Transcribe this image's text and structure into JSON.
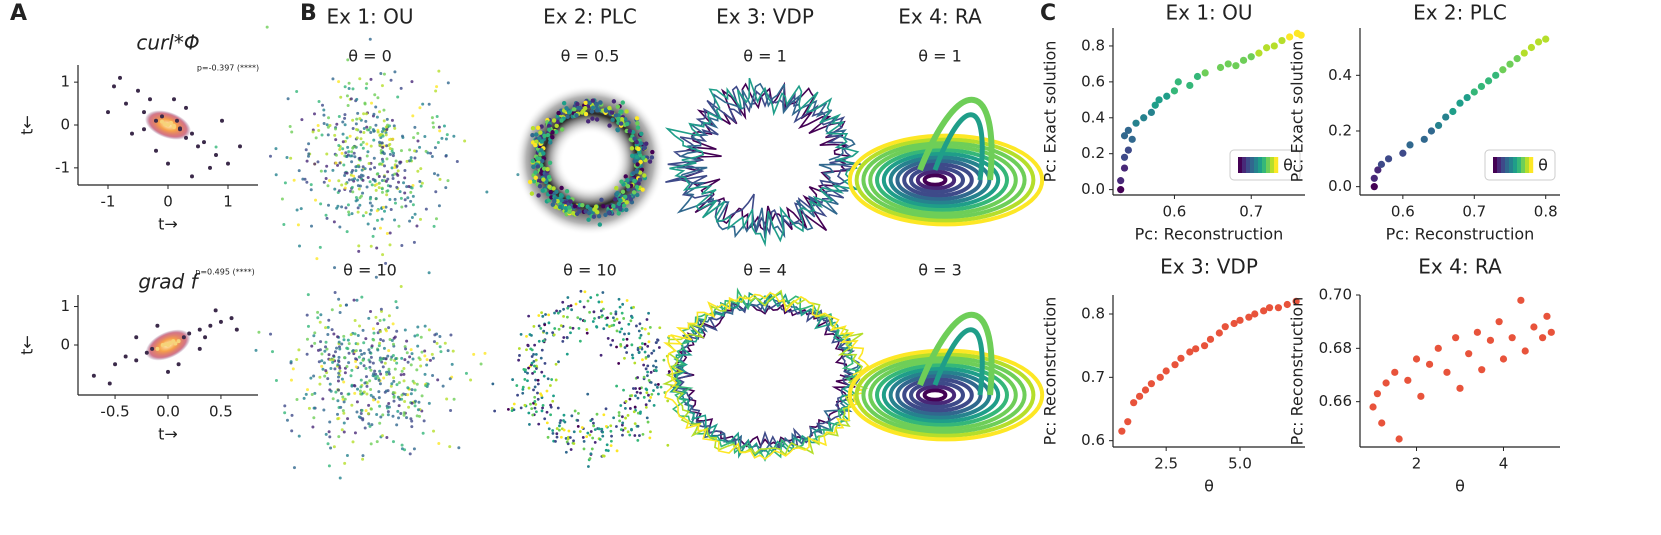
{
  "panel_labels": [
    "A",
    "B",
    "C"
  ],
  "panel_b": {
    "columns": [
      {
        "title": "Ex 1: OU",
        "top": "θ = 0",
        "bottom": "θ = 10"
      },
      {
        "title": "Ex 2: PLC",
        "top": "θ = 0.5",
        "bottom": "θ = 10"
      },
      {
        "title": "Ex 3: VDP",
        "top": "θ = 1",
        "bottom": "θ = 4"
      },
      {
        "title": "Ex 4: RA",
        "top": "θ = 1",
        "bottom": "θ = 3"
      }
    ]
  },
  "chart_data": [
    {
      "type": "scatter",
      "title": "curl*Φ",
      "annotation": "p=-0.397 (****)",
      "xlabel": "t→",
      "ylabel": "t←",
      "xlim": [
        -1.5,
        1.5
      ],
      "xticks": [
        -1,
        0,
        1
      ],
      "ylim": [
        -1.4,
        1.4
      ],
      "yticks": [
        -1,
        0,
        1
      ],
      "colormap": "inferno",
      "x": [
        -0.9,
        -0.7,
        -0.5,
        -0.4,
        -0.3,
        -0.2,
        -0.1,
        0,
        0.05,
        0.1,
        0.15,
        0.2,
        0.3,
        0.4,
        0.5,
        0.6,
        0.8,
        1.0,
        -0.6,
        -0.2,
        0.1,
        0.3,
        -0.4,
        0.7,
        -1.0,
        1.2,
        0.0,
        -0.05,
        0.1,
        -0.1,
        0.2,
        0.9,
        -0.8,
        0.4
      ],
      "values": [
        0.9,
        0.5,
        0.8,
        0.3,
        0.6,
        0.1,
        0.2,
        0.0,
        0.05,
        -0.05,
        0.1,
        -0.1,
        -0.3,
        -0.2,
        -0.5,
        -0.4,
        -0.7,
        -0.9,
        -0.2,
        -0.6,
        0.6,
        0.4,
        -0.1,
        -1.0,
        0.3,
        -0.5,
        -0.9,
        0.02,
        -0.02,
        0.08,
        -0.08,
        0.1,
        1.1,
        -1.2
      ]
    },
    {
      "type": "scatter",
      "title": "grad f",
      "annotation": "p=0.495 (****)",
      "xlabel": "t→",
      "ylabel": "t←",
      "xlim": [
        -0.85,
        0.85
      ],
      "xticks": [
        -0.5,
        {
          "value": 0,
          "label": "0.0"
        },
        0.5
      ],
      "ylim": [
        -1.3,
        1.3
      ],
      "yticks": [
        0,
        1
      ],
      "colormap": "inferno",
      "x": [
        -0.7,
        -0.5,
        -0.4,
        -0.3,
        -0.2,
        -0.15,
        -0.1,
        -0.05,
        0,
        0.02,
        0.05,
        0.1,
        0.15,
        0.2,
        0.3,
        0.35,
        0.4,
        0.5,
        0.6,
        -0.3,
        0.1,
        0.3,
        -0.1,
        0.45,
        -0.55,
        0.65,
        0.0,
        -0.02,
        0.07
      ],
      "values": [
        -0.8,
        -0.5,
        -0.3,
        -0.4,
        -0.2,
        -0.1,
        -0.1,
        0.0,
        0.0,
        0.05,
        0.1,
        0.1,
        0.2,
        0.3,
        0.4,
        0.2,
        0.5,
        0.6,
        0.7,
        0.2,
        -0.5,
        -0.1,
        0.5,
        0.9,
        -1.0,
        0.4,
        -0.7,
        0.02,
        0.04
      ]
    },
    {
      "type": "scatter",
      "title": "Ex 1: OU",
      "xlabel": "Pc: Reconstruction",
      "ylabel": "Pc: Exact solution",
      "colormap": "viridis",
      "colorbar_label": "θ",
      "legend": "lower right",
      "xlim": [
        0.52,
        0.77
      ],
      "xticks": [
        0.6,
        0.7
      ],
      "ylim": [
        -0.03,
        0.9
      ],
      "yticks": [
        {
          "value": 0,
          "label": "0.0"
        },
        0.2,
        0.4,
        0.6,
        0.8
      ],
      "x": [
        0.53,
        0.53,
        0.535,
        0.535,
        0.54,
        0.535,
        0.54,
        0.545,
        0.55,
        0.56,
        0.57,
        0.575,
        0.58,
        0.59,
        0.6,
        0.605,
        0.62,
        0.63,
        0.64,
        0.66,
        0.67,
        0.68,
        0.69,
        0.7,
        0.71,
        0.72,
        0.73,
        0.74,
        0.75,
        0.76,
        0.765
      ],
      "values": [
        0.0,
        0.05,
        0.12,
        0.18,
        0.22,
        0.3,
        0.33,
        0.28,
        0.37,
        0.4,
        0.43,
        0.47,
        0.5,
        0.52,
        0.55,
        0.6,
        0.58,
        0.63,
        0.65,
        0.68,
        0.7,
        0.69,
        0.72,
        0.74,
        0.76,
        0.79,
        0.8,
        0.83,
        0.85,
        0.87,
        0.86
      ]
    },
    {
      "type": "scatter",
      "title": "Ex 2: PLC",
      "xlabel": "Pc: Reconstruction",
      "ylabel": "Pc: Exact solution",
      "colormap": "viridis",
      "colorbar_label": "θ",
      "legend": "lower right",
      "xlim": [
        0.54,
        0.82
      ],
      "xticks": [
        0.6,
        0.7,
        0.8
      ],
      "ylim": [
        -0.03,
        0.57
      ],
      "yticks": [
        {
          "value": 0,
          "label": "0.0"
        },
        0.2,
        0.4
      ],
      "x": [
        0.56,
        0.56,
        0.565,
        0.57,
        0.58,
        0.6,
        0.61,
        0.63,
        0.64,
        0.65,
        0.66,
        0.67,
        0.68,
        0.69,
        0.7,
        0.71,
        0.72,
        0.73,
        0.74,
        0.75,
        0.76,
        0.77,
        0.78,
        0.79,
        0.8
      ],
      "values": [
        0.0,
        0.03,
        0.06,
        0.08,
        0.1,
        0.12,
        0.15,
        0.17,
        0.2,
        0.22,
        0.25,
        0.27,
        0.3,
        0.32,
        0.34,
        0.36,
        0.38,
        0.4,
        0.42,
        0.44,
        0.46,
        0.48,
        0.5,
        0.52,
        0.53
      ]
    },
    {
      "type": "scatter",
      "title": "Ex 3: VDP",
      "xlabel": "θ",
      "ylabel": "Pc: Reconstruction",
      "color": "#e8533b",
      "xlim": [
        0.7,
        7.2
      ],
      "xticks": [
        2.5,
        {
          "value": 5,
          "label": "5.0"
        }
      ],
      "ylim": [
        0.59,
        0.83
      ],
      "yticks": [
        0.6,
        0.7,
        0.8
      ],
      "x": [
        1.0,
        1.2,
        1.4,
        1.6,
        1.8,
        2.0,
        2.3,
        2.5,
        2.8,
        3.0,
        3.3,
        3.5,
        3.8,
        4.0,
        4.3,
        4.5,
        4.8,
        5.0,
        5.3,
        5.5,
        5.8,
        6.0,
        6.3,
        6.6,
        6.9
      ],
      "values": [
        0.615,
        0.63,
        0.66,
        0.67,
        0.68,
        0.69,
        0.7,
        0.71,
        0.72,
        0.73,
        0.74,
        0.745,
        0.75,
        0.76,
        0.77,
        0.78,
        0.785,
        0.79,
        0.795,
        0.8,
        0.805,
        0.81,
        0.81,
        0.815,
        0.82
      ]
    },
    {
      "type": "scatter",
      "title": "Ex 4: RA",
      "xlabel": "θ",
      "ylabel": "Pc: Reconstruction",
      "color": "#e8533b",
      "xlim": [
        0.7,
        5.3
      ],
      "xticks": [
        2,
        4
      ],
      "ylim": [
        0.643,
        0.7
      ],
      "yticks": [
        0.66,
        0.68,
        {
          "value": 0.7,
          "label": "0.70"
        }
      ],
      "x": [
        1.0,
        1.1,
        1.2,
        1.3,
        1.5,
        1.6,
        1.8,
        2.0,
        2.1,
        2.3,
        2.5,
        2.7,
        2.9,
        3.0,
        3.2,
        3.4,
        3.5,
        3.7,
        3.9,
        4.0,
        4.2,
        4.4,
        4.5,
        4.7,
        4.9,
        5.0,
        5.1
      ],
      "values": [
        0.658,
        0.663,
        0.652,
        0.667,
        0.671,
        0.646,
        0.668,
        0.676,
        0.662,
        0.674,
        0.68,
        0.671,
        0.684,
        0.665,
        0.678,
        0.686,
        0.672,
        0.683,
        0.69,
        0.676,
        0.684,
        0.698,
        0.679,
        0.688,
        0.684,
        0.692,
        0.686
      ]
    }
  ]
}
